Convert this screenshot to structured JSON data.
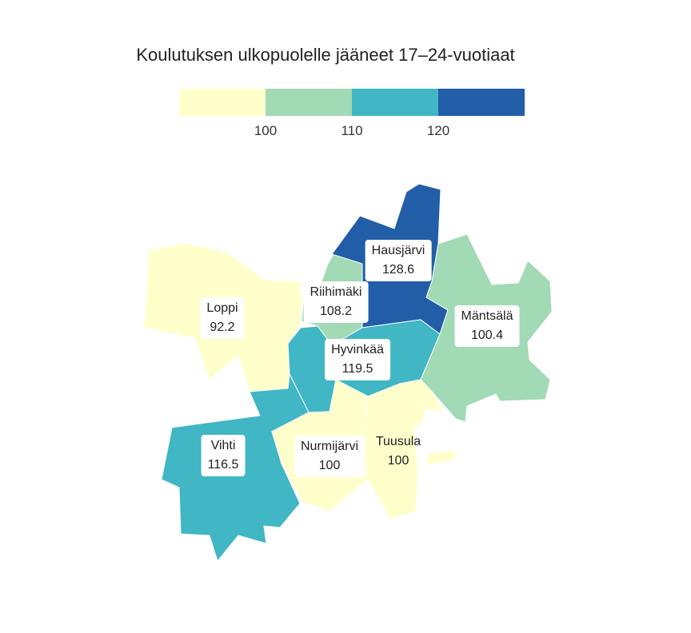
{
  "title": "Koulutuksen ulkopuolelle jääneet 17–24-vuotiaat",
  "legend": {
    "colors": [
      "#ffffcc",
      "#a1dab4",
      "#41b6c4",
      "#225ea8"
    ],
    "ticks": [
      "100",
      "110",
      "120"
    ]
  },
  "municipalities": [
    {
      "name": "Loppi",
      "value": "92.2",
      "color": "#ffffcc"
    },
    {
      "name": "Riihimäki",
      "value": "108.2",
      "color": "#a1dab4"
    },
    {
      "name": "Hausjärvi",
      "value": "128.6",
      "color": "#225ea8"
    },
    {
      "name": "Mäntsälä",
      "value": "100.4",
      "color": "#a1dab4"
    },
    {
      "name": "Hyvinkää",
      "value": "119.5",
      "color": "#41b6c4"
    },
    {
      "name": "Vihti",
      "value": "116.5",
      "color": "#41b6c4"
    },
    {
      "name": "Nurmijärvi",
      "value": "100",
      "color": "#ffffcc"
    },
    {
      "name": "Tuusula",
      "value": "100",
      "color": "#ffffcc"
    }
  ]
}
